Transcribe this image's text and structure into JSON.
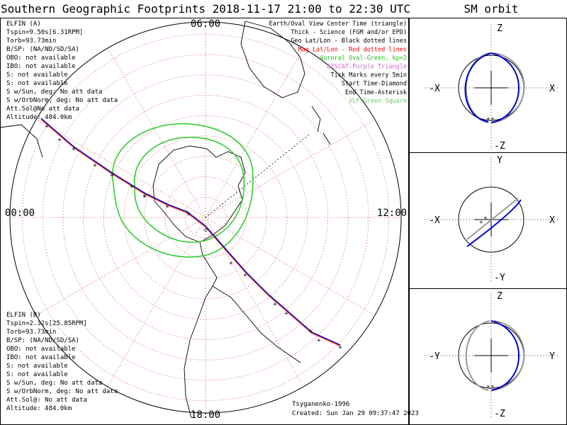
{
  "page_title": "Southern Geographic Footprints 2018-11-17 21:00 to 22:30 UTC",
  "orbit_panel_title": "SM orbit",
  "colors": {
    "elfin_a": "#0000cc",
    "elfin_b": "#ff4422",
    "auroral_oval": "#33cc33",
    "geo_grid": "#cc3333",
    "sm_orbit_b": "#999999"
  },
  "map": {
    "clock_labels": {
      "top": "06:00",
      "left": "00:00",
      "right": "12:00",
      "bottom": "18:00"
    },
    "track_marks": "+",
    "center_mark": "◇",
    "start_mark": "◇",
    "end_mark": "*",
    "legend": [
      {
        "text": "Earth/Oval View Center Time (triangle)",
        "color": "#000000"
      },
      {
        "text": "Thick - Science (FGM and/or EPD)",
        "color": "#000000"
      },
      {
        "text": "Geo Lat/Lon - Black dotted lines",
        "color": "#000000"
      },
      {
        "text": "Mag Lat/Lon - Red dotted lines",
        "color": "#ee0000"
      },
      {
        "text": "Auroral Oval-Green, kp=2",
        "color": "#22bb22"
      },
      {
        "text": "EISCAT-Purple Triangle",
        "color": "#cc66cc"
      },
      {
        "text": "Tick Marks every 5min",
        "color": "#000000"
      },
      {
        "text": "Start Time-Diamond",
        "color": "#000000"
      },
      {
        "text": "End Time-Asterisk",
        "color": "#000000"
      },
      {
        "text": "VLF-Green Square",
        "color": "#66cc66"
      }
    ],
    "elfin_a_info": {
      "title": "ELFIN (A)",
      "lines": [
        "Tspin=9.50s[6.31RPM]",
        "Torb=93.73min",
        "B/SP: (NA/ND/SD/SA)",
        "OBO: not available",
        "IBO: not available",
        "S: not available",
        "S: not available",
        "S w/Sun, deg: No att data",
        "S w/OrbNorm, deg: No att data",
        "Att.Sol@No att data",
        "Altitude: 484.0km"
      ]
    },
    "elfin_b_info": {
      "title": "ELFIN (B)",
      "lines": [
        "Tspin=2.32s[25.85RPM]",
        "Torb=93.73min",
        "B/SP: (NA/ND/SD/SA)",
        "OBO: not available",
        "IBO: not available",
        "S: not available",
        "S: not available",
        "S w/Sun, deg: No att data",
        "S w/OrbNorm, deg: No att data",
        "Att.Sol@: No att data",
        "Altitude: 484.0km"
      ]
    },
    "model_label": "Tsyganenko-1996",
    "created_label": "Created: Sun Jan 29 09:37:47 2023"
  },
  "orbit_panels": [
    {
      "name": "xz",
      "top": "Z",
      "bottom": "-Z",
      "left": "-X",
      "right": "X"
    },
    {
      "name": "xy",
      "top": "Y",
      "bottom": "-Y",
      "left": "-X",
      "right": "X"
    },
    {
      "name": "yz",
      "top": "Z",
      "bottom": "-Z",
      "left": "-Y",
      "right": "Y"
    }
  ],
  "chart_data": {
    "type": "scatter",
    "title": "Southern Geographic Footprints 2018-11-17 21:00 to 22:30 UTC",
    "projection": "south-polar stereographic",
    "local_time_labels": [
      "06:00",
      "00:00",
      "12:00",
      "18:00"
    ],
    "series": [
      {
        "name": "ELFIN (A)"
      },
      {
        "name": "ELFIN (B)"
      }
    ],
    "grid": true,
    "legend_position": "top-right"
  }
}
